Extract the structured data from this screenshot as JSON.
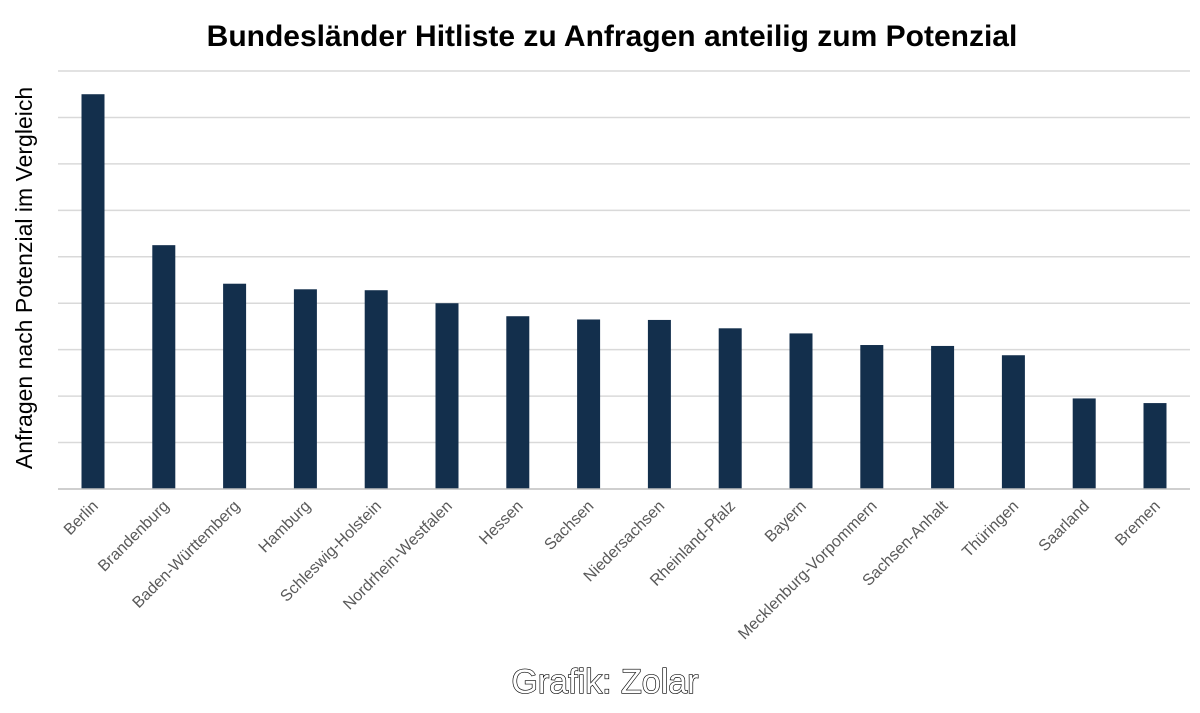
{
  "chart_data": {
    "type": "bar",
    "title": "Bundesländer Hitliste zu Anfragen anteilig zum Potenzial",
    "xlabel": "",
    "ylabel": "Anfragen nach Potenzial im Vergleich",
    "categories": [
      "Berlin",
      "Brandenburg",
      "Baden-Württemberg",
      "Hamburg",
      "Schleswig-Holstein",
      "Nordrhein-Westfalen",
      "Hessen",
      "Sachsen",
      "Niedersachsen",
      "Rheinland-Pfalz",
      "Bayern",
      "Mecklenburg-Vorpommern",
      "Sachsen-Anhalt",
      "Thüringen",
      "Saarland",
      "Bremen"
    ],
    "values": [
      8.5,
      5.25,
      4.42,
      4.3,
      4.28,
      4.0,
      3.72,
      3.65,
      3.64,
      3.46,
      3.35,
      3.1,
      3.08,
      2.88,
      1.95,
      1.85
    ],
    "ylim": [
      0,
      9
    ],
    "grid": true,
    "legend": "none",
    "bar_color": "#132f4c",
    "grid_color": "#d9d9d9"
  },
  "credit": "Grafik: Zolar"
}
